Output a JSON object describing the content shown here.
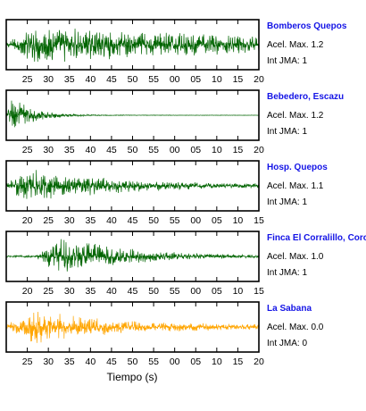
{
  "chart_data": {
    "type": "line",
    "title": "",
    "xlabel": "Tiempo (s)",
    "ylabel": "",
    "grid": false,
    "panels": [
      {
        "station": "Bomberos Quepos",
        "accel_label": "Acel. Max. 1.2",
        "jma_label": "Int JMA: 1",
        "color": "#006400",
        "tick_labels": [
          "25",
          "30",
          "35",
          "40",
          "45",
          "50",
          "55",
          "00",
          "05",
          "10",
          "15",
          "20"
        ],
        "trace": {
          "onset": 0.0,
          "peak_at": 0.12,
          "peak_amp": 0.85,
          "decay": 1.4,
          "floor": 0.22
        }
      },
      {
        "station": "Bebedero, Escazu",
        "accel_label": "Acel. Max. 1.2",
        "jma_label": "Int JMA: 1",
        "color": "#006400",
        "tick_labels": [
          "25",
          "30",
          "35",
          "40",
          "45",
          "50",
          "55",
          "00",
          "05",
          "10",
          "15",
          "20"
        ],
        "trace": {
          "onset": 0.0,
          "peak_at": 0.02,
          "peak_amp": 0.95,
          "decay": 12.0,
          "floor": 0.01
        }
      },
      {
        "station": "Hosp. Quepos",
        "accel_label": "Acel. Max. 1.1",
        "jma_label": "Int JMA: 1",
        "color": "#006400",
        "tick_labels": [
          "20",
          "25",
          "30",
          "35",
          "40",
          "45",
          "50",
          "55",
          "00",
          "05",
          "10",
          "15"
        ],
        "trace": {
          "onset": 0.0,
          "peak_at": 0.08,
          "peak_amp": 0.8,
          "decay": 3.0,
          "floor": 0.06
        }
      },
      {
        "station": "Finca El Corralillo, Coronado",
        "accel_label": "Acel. Max. 1.0",
        "jma_label": "Int JMA: 1",
        "color": "#006400",
        "tick_labels": [
          "20",
          "25",
          "30",
          "35",
          "40",
          "45",
          "50",
          "55",
          "00",
          "05",
          "10",
          "15"
        ],
        "trace": {
          "onset": 0.12,
          "peak_at": 0.22,
          "peak_amp": 0.95,
          "decay": 4.0,
          "floor": 0.03
        }
      },
      {
        "station": "La Sabana",
        "accel_label": "Acel. Max. 0.0",
        "jma_label": "Int JMA: 0",
        "color": "#ffa500",
        "tick_labels": [
          "25",
          "30",
          "35",
          "40",
          "45",
          "50",
          "55",
          "00",
          "05",
          "10",
          "15",
          "20"
        ],
        "trace": {
          "onset": 0.0,
          "peak_at": 0.12,
          "peak_amp": 0.8,
          "decay": 3.5,
          "floor": 0.1
        }
      }
    ]
  }
}
